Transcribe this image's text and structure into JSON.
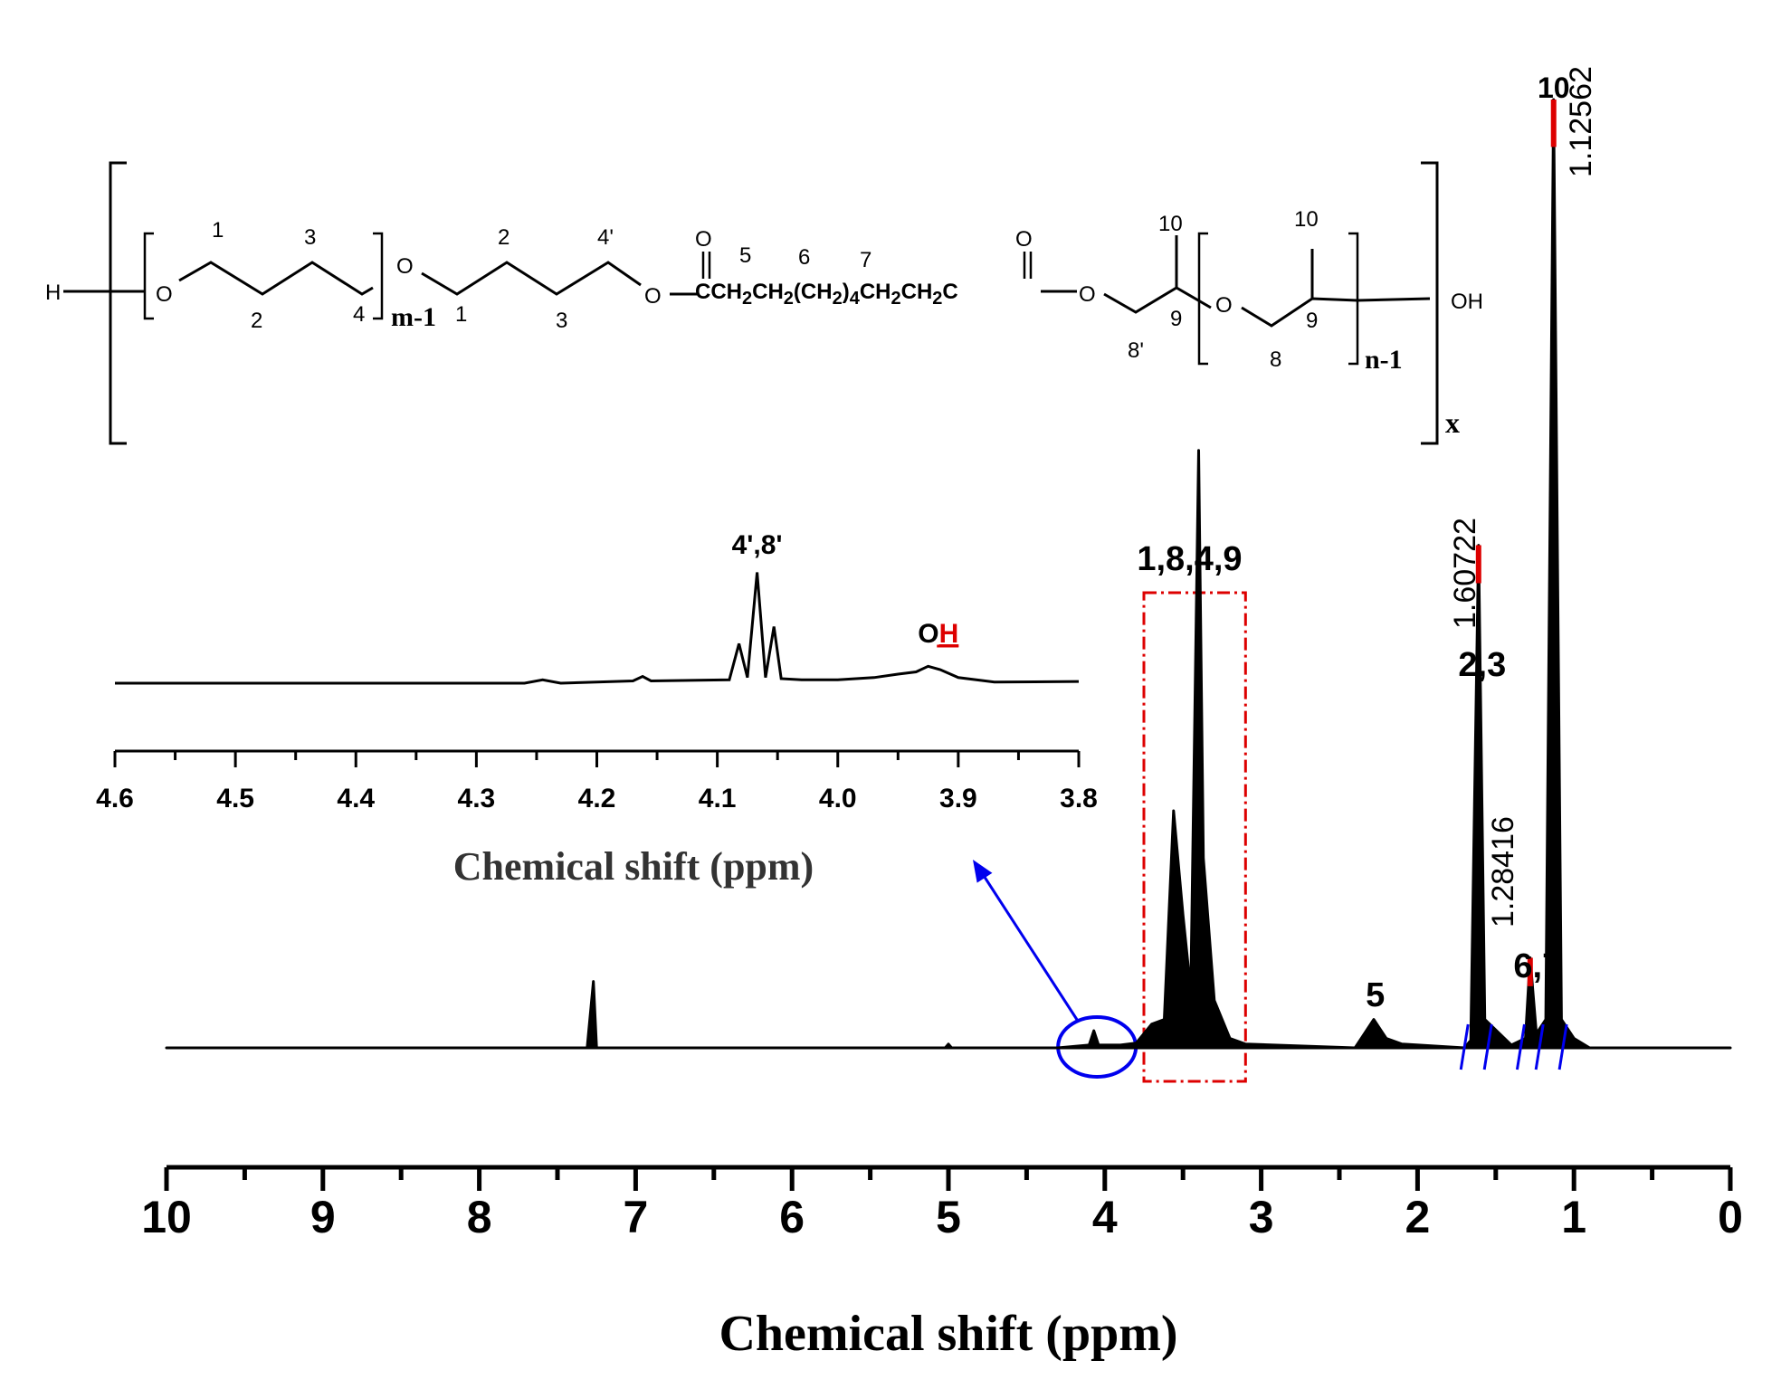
{
  "chart_data": [
    {
      "type": "line",
      "title": "",
      "xlabel": "Chemical shift (ppm)",
      "ylabel": "",
      "xlim": [
        10,
        0
      ],
      "x_ticks": [
        "10",
        "9",
        "8",
        "7",
        "6",
        "5",
        "4",
        "3",
        "2",
        "1",
        "0"
      ],
      "grid": false,
      "series": [
        {
          "points": [
            [
              10.0,
              0
            ],
            [
              7.31,
              0
            ],
            [
              7.27,
              0.07
            ],
            [
              7.25,
              0
            ],
            [
              5.02,
              0
            ],
            [
              5.0,
              0.004
            ],
            [
              4.98,
              0
            ],
            [
              4.3,
              0
            ],
            [
              4.1,
              0.003
            ],
            [
              4.07,
              0.018
            ],
            [
              4.04,
              0.003
            ],
            [
              3.9,
              0.003
            ],
            [
              3.8,
              0.005
            ],
            [
              3.7,
              0.025
            ],
            [
              3.62,
              0.03
            ],
            [
              3.56,
              0.25
            ],
            [
              3.5,
              0.14
            ],
            [
              3.45,
              0.06
            ],
            [
              3.4,
              0.63
            ],
            [
              3.37,
              0.2
            ],
            [
              3.3,
              0.05
            ],
            [
              3.2,
              0.01
            ],
            [
              3.1,
              0.004
            ],
            [
              2.4,
              0
            ],
            [
              2.28,
              0.03
            ],
            [
              2.2,
              0.01
            ],
            [
              2.1,
              0.004
            ],
            [
              1.7,
              0
            ],
            [
              1.66,
              0.008
            ],
            [
              1.61,
              0.53
            ],
            [
              1.57,
              0.03
            ],
            [
              1.4,
              0.003
            ],
            [
              1.31,
              0.01
            ],
            [
              1.28,
              0.095
            ],
            [
              1.24,
              0.015
            ],
            [
              1.18,
              0.03
            ],
            [
              1.13,
              1.0
            ],
            [
              1.08,
              0.03
            ],
            [
              1.0,
              0.01
            ],
            [
              0.9,
              0
            ],
            [
              0.0,
              0
            ]
          ]
        }
      ],
      "peak_labels": [
        {
          "text": "1,8,4,9",
          "x": 3.4
        },
        {
          "text": "5",
          "x": 2.27
        },
        {
          "text": "2,3",
          "x": 1.61
        },
        {
          "text": "6,7",
          "x": 1.28
        },
        {
          "text": "10",
          "x": 1.13
        }
      ],
      "peak_values": [
        {
          "text": "1.12562",
          "x": 1.126
        },
        {
          "text": "1.60722",
          "x": 1.607
        },
        {
          "text": "1.28416",
          "x": 1.284
        }
      ],
      "integral_marks_ppm": [
        1.7,
        1.55,
        1.34,
        1.22,
        1.07
      ],
      "highlight_region_ppm": [
        3.75,
        3.1
      ],
      "circle_center_ppm": 4.05,
      "colors": {
        "line": "#000000",
        "peak_top": "#dd0000",
        "highlight": "#dd0000",
        "circle": "#0000ee",
        "integral": "#0000ee"
      }
    },
    {
      "type": "line",
      "title": "",
      "xlabel": "Chemical shift (ppm)",
      "ylabel": "",
      "xlim": [
        4.6,
        3.8
      ],
      "x_ticks": [
        "4.6",
        "4.5",
        "4.4",
        "4.3",
        "4.2",
        "4.1",
        "4.0",
        "3.9",
        "3.8"
      ],
      "grid": false,
      "series": [
        {
          "points": [
            [
              4.6,
              0
            ],
            [
              4.26,
              0
            ],
            [
              4.245,
              0.03
            ],
            [
              4.23,
              0
            ],
            [
              4.17,
              0.02
            ],
            [
              4.162,
              0.06
            ],
            [
              4.155,
              0.02
            ],
            [
              4.09,
              0.03
            ],
            [
              4.082,
              0.35
            ],
            [
              4.075,
              0.05
            ],
            [
              4.067,
              0.98
            ],
            [
              4.06,
              0.05
            ],
            [
              4.053,
              0.5
            ],
            [
              4.047,
              0.04
            ],
            [
              4.03,
              0.03
            ],
            [
              4.0,
              0.03
            ],
            [
              3.97,
              0.05
            ],
            [
              3.95,
              0.08
            ],
            [
              3.935,
              0.1
            ],
            [
              3.925,
              0.15
            ],
            [
              3.915,
              0.12
            ],
            [
              3.9,
              0.05
            ],
            [
              3.87,
              0.01
            ],
            [
              3.8,
              0.015
            ]
          ]
        }
      ],
      "peak_labels": [
        {
          "text": "4',8'",
          "x": 4.067
        },
        {
          "text_plain": "O",
          "text_under": "H",
          "x": 3.92
        }
      ]
    }
  ],
  "structure": {
    "h_left": "H",
    "o1": "O",
    "o2": "O",
    "o3": "O",
    "o4": "O",
    "o5": "O",
    "oh": "OH",
    "carbonyl_o1": "O",
    "carbonyl_o2": "O",
    "chain_html": "CCH<sub>2</sub>CH<sub>2</sub>(CH<sub>2</sub>)<sub>4</sub>CH<sub>2</sub>CH<sub>2</sub>C",
    "sub_m": "m-1",
    "sub_n": "n-1",
    "sub_x": "x",
    "nums": {
      "a1": "1",
      "a2": "2",
      "a3": "3",
      "a4": "4",
      "b1": "1",
      "b2": "2",
      "b3": "3",
      "b4": "4'",
      "c5": "5",
      "c6": "6",
      "c7": "7",
      "d10": "10",
      "d9": "9",
      "d8p": "8'",
      "e10": "10",
      "e9": "9",
      "e8": "8"
    }
  }
}
